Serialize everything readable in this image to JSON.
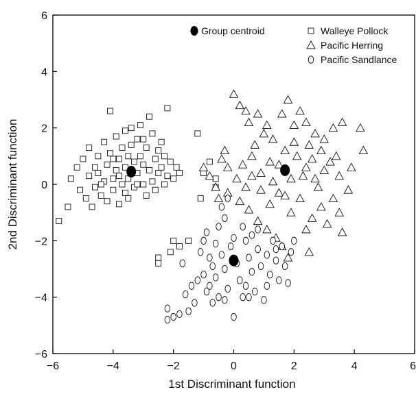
{
  "chart_data": {
    "type": "scatter",
    "title": "",
    "xlabel": "1st  Discriminant function",
    "ylabel": "2nd Discriminant  function",
    "xlim": [
      -6,
      6
    ],
    "ylim": [
      -6,
      6
    ],
    "xticks": [
      -6,
      -4,
      -2,
      0,
      2,
      4,
      6
    ],
    "yticks": [
      -6,
      -4,
      -2,
      0,
      2,
      4,
      6
    ],
    "x_tick_labels": [
      "−6",
      "−4",
      "−2",
      "0",
      "2",
      "4",
      "6"
    ],
    "y_tick_labels": [
      "−6",
      "−4",
      "−2",
      "0",
      "2",
      "4",
      "6"
    ],
    "grid": false,
    "legend_position": "top-right",
    "centroid_label": "Group centroid",
    "series": [
      {
        "name": "Walleye Pollock",
        "marker": "square",
        "centroid": [
          -3.4,
          0.45
        ],
        "points": [
          [
            -5.8,
            -1.3
          ],
          [
            -5.5,
            -0.8
          ],
          [
            -5.4,
            0.2
          ],
          [
            -5.2,
            0.6
          ],
          [
            -5.1,
            -0.2
          ],
          [
            -5.0,
            0.9
          ],
          [
            -4.9,
            -0.5
          ],
          [
            -4.8,
            1.3
          ],
          [
            -4.8,
            0.3
          ],
          [
            -4.7,
            -0.8
          ],
          [
            -4.6,
            0.6
          ],
          [
            -4.6,
            -0.1
          ],
          [
            -4.5,
            1.0
          ],
          [
            -4.5,
            0.4
          ],
          [
            -4.4,
            -0.4
          ],
          [
            -4.3,
            1.5
          ],
          [
            -4.3,
            0.1
          ],
          [
            -4.2,
            0.7
          ],
          [
            -4.2,
            -0.6
          ],
          [
            -4.1,
            2.6
          ],
          [
            -4.1,
            1.1
          ],
          [
            -4.0,
            0.2
          ],
          [
            -4.0,
            -0.2
          ],
          [
            -3.9,
            1.7
          ],
          [
            -3.9,
            0.5
          ],
          [
            -3.8,
            -0.7
          ],
          [
            -3.8,
            0.9
          ],
          [
            -3.7,
            1.3
          ],
          [
            -3.7,
            0.0
          ],
          [
            -3.6,
            1.9
          ],
          [
            -3.6,
            0.6
          ],
          [
            -3.6,
            -0.3
          ],
          [
            -3.5,
            1.0
          ],
          [
            -3.5,
            0.2
          ],
          [
            -3.4,
            2.0
          ],
          [
            -3.4,
            1.4
          ],
          [
            -3.3,
            0.8
          ],
          [
            -3.3,
            -0.1
          ],
          [
            -3.2,
            1.6
          ],
          [
            -3.2,
            0.4
          ],
          [
            -3.1,
            2.1
          ],
          [
            -3.1,
            1.0
          ],
          [
            -3.0,
            0.0
          ],
          [
            -3.0,
            0.7
          ],
          [
            -2.9,
            1.3
          ],
          [
            -2.9,
            -0.4
          ],
          [
            -2.8,
            2.4
          ],
          [
            -2.8,
            0.5
          ],
          [
            -2.7,
            1.8
          ],
          [
            -2.7,
            0.1
          ],
          [
            -2.6,
            0.9
          ],
          [
            -2.6,
            -0.2
          ],
          [
            -2.5,
            1.2
          ],
          [
            -2.5,
            0.4
          ],
          [
            -2.4,
            0.6
          ],
          [
            -2.3,
            1.0
          ],
          [
            -2.3,
            0.0
          ],
          [
            -2.2,
            2.7
          ],
          [
            -2.2,
            0.3
          ],
          [
            -2.1,
            0.8
          ],
          [
            -2.0,
            0.2
          ],
          [
            -1.9,
            0.6
          ],
          [
            -1.8,
            0.4
          ],
          [
            -1.2,
            1.8
          ],
          [
            -1.1,
            -0.5
          ],
          [
            -1.0,
            0.4
          ],
          [
            -0.8,
            0.8
          ],
          [
            -0.6,
            0.2
          ],
          [
            -2.0,
            -2.0
          ],
          [
            -1.8,
            -2.2
          ],
          [
            -2.1,
            -2.4
          ],
          [
            -2.5,
            -2.6
          ],
          [
            -2.5,
            -2.8
          ],
          [
            -1.5,
            -2.0
          ],
          [
            -0.6,
            -0.1
          ],
          [
            -3.8,
            0.3
          ],
          [
            -4.4,
            0.0
          ],
          [
            -3.0,
            1.6
          ],
          [
            -3.5,
            -0.5
          ],
          [
            -4.0,
            0.9
          ],
          [
            -2.4,
            1.5
          ],
          [
            -3.2,
            0.0
          ]
        ]
      },
      {
        "name": "Pacific Herring",
        "marker": "triangle",
        "centroid": [
          1.7,
          0.5
        ],
        "points": [
          [
            0.0,
            3.2
          ],
          [
            0.2,
            2.8
          ],
          [
            0.4,
            2.6
          ],
          [
            0.5,
            2.2
          ],
          [
            0.8,
            2.5
          ],
          [
            1.1,
            2.1
          ],
          [
            1.3,
            1.6
          ],
          [
            1.6,
            2.5
          ],
          [
            1.8,
            3.0
          ],
          [
            2.2,
            2.6
          ],
          [
            2.4,
            2.2
          ],
          [
            2.7,
            1.8
          ],
          [
            3.0,
            1.6
          ],
          [
            3.3,
            2.0
          ],
          [
            3.6,
            2.2
          ],
          [
            4.2,
            2.0
          ],
          [
            4.3,
            1.2
          ],
          [
            3.9,
            0.6
          ],
          [
            3.5,
            0.3
          ],
          [
            3.8,
            -0.2
          ],
          [
            3.3,
            -0.5
          ],
          [
            2.9,
            -0.8
          ],
          [
            2.6,
            -1.2
          ],
          [
            3.1,
            -1.4
          ],
          [
            2.5,
            -2.4
          ],
          [
            3.6,
            -1.7
          ],
          [
            3.5,
            -1.0
          ],
          [
            2.8,
            -0.1
          ],
          [
            2.4,
            0.6
          ],
          [
            2.1,
            1.0
          ],
          [
            1.9,
            0.2
          ],
          [
            1.5,
            -0.3
          ],
          [
            1.2,
            0.8
          ],
          [
            0.9,
            0.4
          ],
          [
            0.6,
            1.0
          ],
          [
            0.3,
            0.7
          ],
          [
            0.1,
            0.2
          ],
          [
            -0.2,
            0.6
          ],
          [
            -0.4,
            0.9
          ],
          [
            -0.6,
            -0.1
          ],
          [
            -0.8,
            0.3
          ],
          [
            -1.0,
            0.6
          ],
          [
            -0.5,
            -0.5
          ],
          [
            -0.2,
            -0.3
          ],
          [
            0.2,
            -0.6
          ],
          [
            0.5,
            -0.9
          ],
          [
            0.8,
            -1.3
          ],
          [
            1.1,
            -1.6
          ],
          [
            1.4,
            -1.9
          ],
          [
            1.6,
            -2.2
          ],
          [
            1.8,
            -2.6
          ],
          [
            0.9,
            -0.2
          ],
          [
            1.3,
            0.1
          ],
          [
            1.7,
            1.2
          ],
          [
            2.0,
            1.5
          ],
          [
            2.3,
            0.3
          ],
          [
            2.6,
            0.9
          ],
          [
            3.0,
            0.5
          ],
          [
            3.4,
            1.0
          ],
          [
            0.7,
            1.4
          ],
          [
            1.0,
            1.8
          ],
          [
            1.5,
            0.7
          ],
          [
            2.2,
            -0.5
          ],
          [
            2.7,
            0.2
          ],
          [
            3.2,
            0.8
          ],
          [
            0.4,
            -0.1
          ],
          [
            1.9,
            -1.0
          ],
          [
            2.4,
            -1.6
          ],
          [
            -0.3,
            1.2
          ],
          [
            1.2,
            -0.7
          ],
          [
            2.0,
            2.1
          ],
          [
            2.9,
            1.2
          ],
          [
            0.6,
            0.3
          ],
          [
            1.7,
            -0.4
          ],
          [
            2.5,
            1.4
          ]
        ]
      },
      {
        "name": "Pacific Sandlance",
        "marker": "circle",
        "centroid": [
          0.0,
          -2.7
        ],
        "points": [
          [
            -2.2,
            -4.4
          ],
          [
            -2.2,
            -4.8
          ],
          [
            -2.0,
            -4.7
          ],
          [
            -1.8,
            -4.6
          ],
          [
            -1.5,
            -4.5
          ],
          [
            -1.6,
            -3.9
          ],
          [
            -1.4,
            -3.6
          ],
          [
            -1.3,
            -4.2
          ],
          [
            -1.2,
            -3.4
          ],
          [
            -1.0,
            -3.2
          ],
          [
            -0.9,
            -3.8
          ],
          [
            -0.8,
            -3.6
          ],
          [
            -0.7,
            -2.9
          ],
          [
            -0.6,
            -3.3
          ],
          [
            -0.5,
            -4.0
          ],
          [
            -0.4,
            -2.5
          ],
          [
            -0.3,
            -3.0
          ],
          [
            -0.2,
            -3.7
          ],
          [
            -0.1,
            -2.2
          ],
          [
            0.1,
            -2.8
          ],
          [
            0.2,
            -3.4
          ],
          [
            0.3,
            -4.0
          ],
          [
            0.4,
            -2.0
          ],
          [
            0.5,
            -2.6
          ],
          [
            0.6,
            -3.1
          ],
          [
            0.7,
            -3.8
          ],
          [
            0.8,
            -2.3
          ],
          [
            0.9,
            -2.9
          ],
          [
            1.0,
            -4.1
          ],
          [
            1.1,
            -2.5
          ],
          [
            1.2,
            -3.2
          ],
          [
            1.3,
            -2.0
          ],
          [
            1.4,
            -2.7
          ],
          [
            1.5,
            -3.4
          ],
          [
            1.6,
            -2.2
          ],
          [
            1.7,
            -2.9
          ],
          [
            1.8,
            -3.5
          ],
          [
            1.9,
            -2.4
          ],
          [
            2.0,
            -2.0
          ],
          [
            -0.5,
            -1.5
          ],
          [
            -0.3,
            -1.2
          ],
          [
            -0.4,
            -0.8
          ],
          [
            -0.2,
            -0.5
          ],
          [
            -0.9,
            -1.7
          ],
          [
            -1.1,
            -2.4
          ],
          [
            -1.7,
            -2.8
          ],
          [
            -0.6,
            -2.1
          ],
          [
            0.0,
            -1.9
          ],
          [
            0.3,
            -1.5
          ],
          [
            0.6,
            -1.8
          ],
          [
            -1.0,
            -2.0
          ],
          [
            -0.8,
            -2.6
          ],
          [
            0.0,
            -4.7
          ],
          [
            -0.3,
            -4.1
          ],
          [
            0.4,
            -3.6
          ],
          [
            1.1,
            -3.6
          ],
          [
            0.5,
            -4.0
          ],
          [
            -0.7,
            -4.2
          ],
          [
            1.4,
            -2.3
          ],
          [
            0.8,
            -1.6
          ]
        ]
      }
    ]
  }
}
